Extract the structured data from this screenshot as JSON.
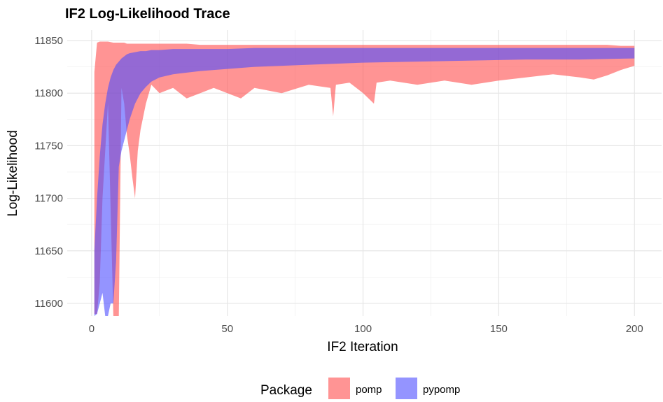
{
  "chart_data": {
    "type": "area",
    "title": "IF2 Log-Likelihood Trace",
    "xlabel": "IF2 Iteration",
    "ylabel": "Log-Likelihood",
    "xlim": [
      -9,
      210
    ],
    "ylim": [
      11588,
      11860
    ],
    "xticks": [
      0,
      50,
      100,
      150,
      200
    ],
    "yticks": [
      11600,
      11650,
      11700,
      11750,
      11800,
      11850
    ],
    "grid": true,
    "legend": {
      "title": "Package",
      "position": "bottom"
    },
    "series": [
      {
        "name": "pomp",
        "color": "#ff4d4d",
        "opacity": 0.6,
        "x": [
          1,
          2,
          3,
          4,
          6,
          8,
          9,
          10,
          11,
          12,
          13,
          14,
          15,
          16,
          17,
          18,
          20,
          22,
          25,
          30,
          35,
          40,
          45,
          50,
          55,
          60,
          70,
          80,
          88,
          89,
          90,
          95,
          100,
          104,
          105,
          110,
          120,
          130,
          140,
          150,
          160,
          170,
          180,
          185,
          190,
          195,
          200
        ],
        "upper": [
          11820,
          11848,
          11849,
          11849,
          11849,
          11848,
          11848,
          11848,
          11848,
          11848,
          11847,
          11847,
          11847,
          11847,
          11847,
          11847,
          11847,
          11847,
          11847,
          11847,
          11847,
          11846,
          11846,
          11846,
          11846,
          11846,
          11846,
          11846,
          11846,
          11846,
          11846,
          11846,
          11846,
          11846,
          11846,
          11846,
          11846,
          11846,
          11846,
          11846,
          11846,
          11846,
          11846,
          11846,
          11846,
          11845,
          11845
        ],
        "lower": [
          11590,
          11590,
          11620,
          11700,
          11790,
          11588,
          11588,
          11588,
          11805,
          11790,
          11760,
          11742,
          11720,
          11700,
          11745,
          11765,
          11790,
          11808,
          11800,
          11805,
          11795,
          11800,
          11805,
          11800,
          11795,
          11805,
          11800,
          11808,
          11805,
          11778,
          11808,
          11810,
          11800,
          11790,
          11810,
          11812,
          11808,
          11812,
          11808,
          11812,
          11815,
          11818,
          11815,
          11813,
          11817,
          11822,
          11826
        ]
      },
      {
        "name": "pypomp",
        "color": "#4d4dff",
        "opacity": 0.6,
        "x": [
          1,
          2,
          3,
          4,
          5,
          6,
          7,
          8,
          9,
          10,
          11,
          12,
          13,
          14,
          16,
          18,
          20,
          22,
          25,
          30,
          40,
          50,
          60,
          70,
          80,
          90,
          100,
          120,
          140,
          160,
          180,
          200
        ],
        "upper": [
          11650,
          11700,
          11740,
          11770,
          11790,
          11805,
          11815,
          11822,
          11827,
          11830,
          11833,
          11835,
          11837,
          11838,
          11839,
          11840,
          11840,
          11841,
          11841,
          11842,
          11842,
          11842,
          11843,
          11843,
          11843,
          11843,
          11843,
          11843,
          11843,
          11843,
          11843,
          11843
        ],
        "lower": [
          11588,
          11590,
          11600,
          11610,
          11588,
          11588,
          11600,
          11600,
          11640,
          11730,
          11745,
          11755,
          11765,
          11775,
          11790,
          11800,
          11806,
          11811,
          11815,
          11818,
          11821,
          11823,
          11825,
          11826,
          11827,
          11828,
          11829,
          11830,
          11831,
          11832,
          11832,
          11833
        ]
      }
    ]
  }
}
